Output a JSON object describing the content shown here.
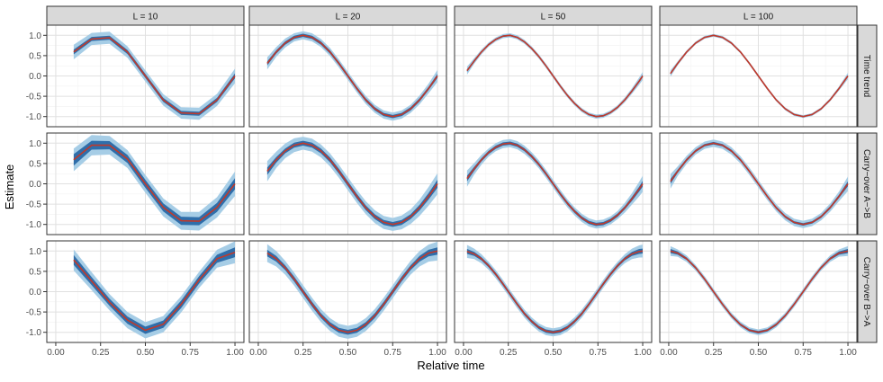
{
  "chart_data": {
    "type": "line",
    "xlabel": "Relative time",
    "ylabel": "Estimate",
    "xlim": [
      0,
      1
    ],
    "ylim": [
      -1.25,
      1.25
    ],
    "x_ticks": [
      "0.00",
      "0.25",
      "0.50",
      "0.75",
      "1.00"
    ],
    "y_ticks": [
      "1.0",
      "0.5",
      "0.0",
      "-0.5",
      "-1.0"
    ],
    "grid": true,
    "col_facets": [
      "L = 10",
      "L = 20",
      "L = 50",
      "L = 100"
    ],
    "row_facets": [
      "Time trend",
      "Carry−over A−>B",
      "Carry−over B−>A"
    ],
    "colors": {
      "outer_band": "#a6cde6",
      "inner_band": "#2f6eaa",
      "line": "#c0392b",
      "strip_fill": "#d9d9d9",
      "grid_major": "#e0e0e0",
      "grid_minor": "#f2f2f2"
    },
    "panels": [
      {
        "row": 0,
        "col": 0,
        "x": [
          0.1,
          0.2,
          0.3,
          0.4,
          0.5,
          0.6,
          0.7,
          0.8,
          0.9,
          1.0
        ],
        "y": [
          0.59,
          0.91,
          0.94,
          0.59,
          0.0,
          -0.59,
          -0.91,
          -0.93,
          -0.59,
          0.0
        ],
        "inner_hw": [
          0.06,
          0.05,
          0.05,
          0.05,
          0.05,
          0.05,
          0.05,
          0.05,
          0.05,
          0.06
        ],
        "outer_hw": [
          0.18,
          0.15,
          0.15,
          0.14,
          0.14,
          0.14,
          0.14,
          0.15,
          0.15,
          0.18
        ]
      },
      {
        "row": 0,
        "col": 1,
        "x": [
          0.05,
          0.1,
          0.15,
          0.2,
          0.25,
          0.3,
          0.35,
          0.4,
          0.45,
          0.5,
          0.55,
          0.6,
          0.65,
          0.7,
          0.75,
          0.8,
          0.85,
          0.9,
          0.95,
          1.0
        ],
        "y": [
          0.31,
          0.59,
          0.81,
          0.95,
          1.0,
          0.95,
          0.81,
          0.59,
          0.31,
          0.0,
          -0.31,
          -0.59,
          -0.81,
          -0.95,
          -1.0,
          -0.95,
          -0.81,
          -0.59,
          -0.31,
          0.0
        ],
        "inner_hw": [
          0.05,
          0.04,
          0.04,
          0.04,
          0.04,
          0.04,
          0.04,
          0.04,
          0.04,
          0.04,
          0.04,
          0.04,
          0.04,
          0.04,
          0.04,
          0.04,
          0.04,
          0.04,
          0.04,
          0.05
        ],
        "outer_hw": [
          0.15,
          0.12,
          0.11,
          0.1,
          0.1,
          0.1,
          0.1,
          0.1,
          0.1,
          0.1,
          0.1,
          0.1,
          0.1,
          0.1,
          0.1,
          0.1,
          0.1,
          0.11,
          0.12,
          0.15
        ]
      },
      {
        "row": 0,
        "col": 2,
        "x": [
          0.02,
          0.06,
          0.1,
          0.14,
          0.18,
          0.22,
          0.26,
          0.3,
          0.34,
          0.38,
          0.42,
          0.46,
          0.5,
          0.54,
          0.58,
          0.62,
          0.66,
          0.7,
          0.74,
          0.78,
          0.82,
          0.86,
          0.9,
          0.94,
          0.98,
          1.0
        ],
        "y": [
          0.13,
          0.37,
          0.59,
          0.77,
          0.9,
          0.98,
          1.0,
          0.95,
          0.84,
          0.68,
          0.48,
          0.25,
          0.0,
          -0.25,
          -0.48,
          -0.68,
          -0.84,
          -0.95,
          -1.0,
          -0.98,
          -0.9,
          -0.77,
          -0.59,
          -0.37,
          -0.13,
          0.0
        ],
        "inner_hw": [
          0.03,
          0.03,
          0.02,
          0.02,
          0.02,
          0.02,
          0.02,
          0.02,
          0.02,
          0.02,
          0.02,
          0.02,
          0.02,
          0.02,
          0.02,
          0.02,
          0.02,
          0.02,
          0.02,
          0.02,
          0.02,
          0.02,
          0.02,
          0.03,
          0.03,
          0.03
        ],
        "outer_hw": [
          0.1,
          0.07,
          0.06,
          0.05,
          0.05,
          0.05,
          0.05,
          0.05,
          0.05,
          0.05,
          0.05,
          0.05,
          0.05,
          0.05,
          0.05,
          0.05,
          0.05,
          0.05,
          0.05,
          0.05,
          0.05,
          0.05,
          0.06,
          0.07,
          0.09,
          0.1
        ]
      },
      {
        "row": 0,
        "col": 3,
        "x": [
          0.01,
          0.05,
          0.1,
          0.15,
          0.2,
          0.25,
          0.3,
          0.35,
          0.4,
          0.45,
          0.5,
          0.55,
          0.6,
          0.65,
          0.7,
          0.75,
          0.8,
          0.85,
          0.9,
          0.95,
          1.0
        ],
        "y": [
          0.06,
          0.31,
          0.59,
          0.81,
          0.95,
          1.0,
          0.95,
          0.81,
          0.59,
          0.31,
          0.0,
          -0.31,
          -0.59,
          -0.81,
          -0.95,
          -1.0,
          -0.95,
          -0.81,
          -0.59,
          -0.31,
          0.0
        ],
        "inner_hw": [
          0.02,
          0.02,
          0.015,
          0.015,
          0.015,
          0.015,
          0.015,
          0.015,
          0.015,
          0.015,
          0.015,
          0.015,
          0.015,
          0.015,
          0.015,
          0.015,
          0.015,
          0.015,
          0.015,
          0.02,
          0.02
        ],
        "outer_hw": [
          0.08,
          0.05,
          0.04,
          0.035,
          0.035,
          0.035,
          0.035,
          0.035,
          0.035,
          0.035,
          0.035,
          0.035,
          0.035,
          0.035,
          0.035,
          0.035,
          0.035,
          0.035,
          0.04,
          0.05,
          0.08
        ]
      },
      {
        "row": 1,
        "col": 0,
        "x": [
          0.1,
          0.2,
          0.3,
          0.4,
          0.5,
          0.6,
          0.7,
          0.8,
          0.9,
          1.0
        ],
        "y": [
          0.59,
          0.95,
          0.95,
          0.61,
          0.0,
          -0.58,
          -0.91,
          -0.92,
          -0.58,
          0.0
        ],
        "inner_hw": [
          0.14,
          0.11,
          0.1,
          0.1,
          0.1,
          0.1,
          0.1,
          0.1,
          0.11,
          0.14
        ],
        "outer_hw": [
          0.28,
          0.25,
          0.23,
          0.22,
          0.22,
          0.22,
          0.22,
          0.23,
          0.25,
          0.3
        ]
      },
      {
        "row": 1,
        "col": 1,
        "x": [
          0.05,
          0.1,
          0.15,
          0.2,
          0.25,
          0.3,
          0.35,
          0.4,
          0.45,
          0.5,
          0.55,
          0.6,
          0.65,
          0.7,
          0.75,
          0.8,
          0.85,
          0.9,
          0.95,
          1.0
        ],
        "y": [
          0.31,
          0.59,
          0.81,
          0.95,
          1.0,
          0.95,
          0.81,
          0.59,
          0.31,
          0.0,
          -0.31,
          -0.59,
          -0.81,
          -0.95,
          -1.0,
          -0.95,
          -0.81,
          -0.59,
          -0.31,
          0.0
        ],
        "inner_hw": [
          0.09,
          0.07,
          0.06,
          0.06,
          0.06,
          0.06,
          0.06,
          0.06,
          0.06,
          0.06,
          0.06,
          0.06,
          0.06,
          0.06,
          0.06,
          0.06,
          0.06,
          0.07,
          0.08,
          0.1
        ],
        "outer_hw": [
          0.25,
          0.2,
          0.18,
          0.17,
          0.16,
          0.16,
          0.16,
          0.16,
          0.16,
          0.16,
          0.16,
          0.16,
          0.16,
          0.16,
          0.16,
          0.17,
          0.18,
          0.2,
          0.23,
          0.26
        ]
      },
      {
        "row": 1,
        "col": 2,
        "x": [
          0.02,
          0.06,
          0.1,
          0.14,
          0.18,
          0.22,
          0.26,
          0.3,
          0.34,
          0.38,
          0.42,
          0.46,
          0.5,
          0.54,
          0.58,
          0.62,
          0.66,
          0.7,
          0.74,
          0.78,
          0.82,
          0.86,
          0.9,
          0.94,
          0.98,
          1.0
        ],
        "y": [
          0.13,
          0.37,
          0.59,
          0.77,
          0.9,
          0.98,
          1.0,
          0.95,
          0.84,
          0.68,
          0.48,
          0.25,
          0.0,
          -0.25,
          -0.48,
          -0.68,
          -0.84,
          -0.95,
          -1.0,
          -0.98,
          -0.9,
          -0.77,
          -0.59,
          -0.37,
          -0.13,
          0.0
        ],
        "inner_hw": [
          0.07,
          0.05,
          0.04,
          0.04,
          0.04,
          0.04,
          0.04,
          0.04,
          0.04,
          0.04,
          0.04,
          0.04,
          0.04,
          0.04,
          0.04,
          0.04,
          0.04,
          0.04,
          0.04,
          0.04,
          0.04,
          0.04,
          0.04,
          0.05,
          0.06,
          0.07
        ],
        "outer_hw": [
          0.2,
          0.14,
          0.12,
          0.1,
          0.1,
          0.1,
          0.1,
          0.1,
          0.1,
          0.1,
          0.1,
          0.1,
          0.1,
          0.1,
          0.1,
          0.1,
          0.1,
          0.1,
          0.1,
          0.1,
          0.1,
          0.1,
          0.12,
          0.14,
          0.18,
          0.2
        ]
      },
      {
        "row": 1,
        "col": 3,
        "x": [
          0.01,
          0.05,
          0.1,
          0.15,
          0.2,
          0.25,
          0.3,
          0.35,
          0.4,
          0.45,
          0.5,
          0.55,
          0.6,
          0.65,
          0.7,
          0.75,
          0.8,
          0.85,
          0.9,
          0.95,
          1.0
        ],
        "y": [
          0.06,
          0.31,
          0.59,
          0.81,
          0.95,
          1.0,
          0.95,
          0.81,
          0.59,
          0.31,
          0.0,
          -0.31,
          -0.59,
          -0.81,
          -0.95,
          -1.0,
          -0.95,
          -0.81,
          -0.59,
          -0.31,
          0.0
        ],
        "inner_hw": [
          0.06,
          0.04,
          0.035,
          0.03,
          0.03,
          0.03,
          0.03,
          0.03,
          0.03,
          0.03,
          0.03,
          0.03,
          0.03,
          0.03,
          0.03,
          0.03,
          0.03,
          0.03,
          0.035,
          0.04,
          0.06
        ],
        "outer_hw": [
          0.18,
          0.12,
          0.1,
          0.09,
          0.09,
          0.09,
          0.09,
          0.09,
          0.09,
          0.09,
          0.09,
          0.09,
          0.09,
          0.09,
          0.09,
          0.09,
          0.09,
          0.09,
          0.1,
          0.12,
          0.18
        ]
      },
      {
        "row": 2,
        "col": 0,
        "x": [
          0.1,
          0.2,
          0.3,
          0.4,
          0.5,
          0.6,
          0.7,
          0.8,
          0.9,
          1.0
        ],
        "y": [
          0.78,
          0.26,
          -0.26,
          -0.7,
          -0.95,
          -0.8,
          -0.31,
          0.29,
          0.81,
          0.97
        ],
        "inner_hw": [
          0.12,
          0.1,
          0.09,
          0.09,
          0.09,
          0.09,
          0.09,
          0.09,
          0.1,
          0.12
        ],
        "outer_hw": [
          0.26,
          0.22,
          0.2,
          0.2,
          0.2,
          0.2,
          0.2,
          0.2,
          0.22,
          0.27
        ]
      },
      {
        "row": 2,
        "col": 1,
        "x": [
          0.05,
          0.1,
          0.15,
          0.2,
          0.25,
          0.3,
          0.35,
          0.4,
          0.45,
          0.5,
          0.55,
          0.6,
          0.65,
          0.7,
          0.75,
          0.8,
          0.85,
          0.9,
          0.95,
          1.0
        ],
        "y": [
          0.95,
          0.81,
          0.59,
          0.31,
          0.0,
          -0.31,
          -0.59,
          -0.81,
          -0.95,
          -1.0,
          -0.95,
          -0.81,
          -0.59,
          -0.31,
          0.0,
          0.31,
          0.59,
          0.81,
          0.95,
          1.0
        ],
        "inner_hw": [
          0.08,
          0.07,
          0.06,
          0.06,
          0.06,
          0.06,
          0.06,
          0.06,
          0.06,
          0.06,
          0.06,
          0.06,
          0.06,
          0.06,
          0.06,
          0.06,
          0.06,
          0.07,
          0.08,
          0.09
        ],
        "outer_hw": [
          0.22,
          0.19,
          0.17,
          0.16,
          0.16,
          0.16,
          0.16,
          0.16,
          0.16,
          0.16,
          0.16,
          0.16,
          0.16,
          0.16,
          0.16,
          0.16,
          0.17,
          0.19,
          0.21,
          0.23
        ]
      },
      {
        "row": 2,
        "col": 2,
        "x": [
          0.02,
          0.06,
          0.1,
          0.14,
          0.18,
          0.22,
          0.26,
          0.3,
          0.34,
          0.38,
          0.42,
          0.46,
          0.5,
          0.54,
          0.58,
          0.62,
          0.66,
          0.7,
          0.74,
          0.78,
          0.82,
          0.86,
          0.9,
          0.94,
          0.98,
          1.0
        ],
        "y": [
          0.99,
          0.93,
          0.81,
          0.64,
          0.43,
          0.19,
          -0.06,
          -0.31,
          -0.54,
          -0.73,
          -0.88,
          -0.97,
          -1.0,
          -0.97,
          -0.88,
          -0.73,
          -0.54,
          -0.31,
          -0.06,
          0.19,
          0.43,
          0.64,
          0.81,
          0.93,
          0.99,
          1.0
        ],
        "inner_hw": [
          0.06,
          0.05,
          0.04,
          0.04,
          0.04,
          0.04,
          0.04,
          0.04,
          0.04,
          0.04,
          0.04,
          0.04,
          0.04,
          0.04,
          0.04,
          0.04,
          0.04,
          0.04,
          0.04,
          0.04,
          0.04,
          0.04,
          0.04,
          0.05,
          0.06,
          0.06
        ],
        "outer_hw": [
          0.16,
          0.13,
          0.11,
          0.1,
          0.1,
          0.1,
          0.1,
          0.1,
          0.1,
          0.1,
          0.1,
          0.1,
          0.1,
          0.1,
          0.1,
          0.1,
          0.1,
          0.1,
          0.1,
          0.1,
          0.1,
          0.1,
          0.11,
          0.13,
          0.15,
          0.16
        ]
      },
      {
        "row": 2,
        "col": 3,
        "x": [
          0.01,
          0.05,
          0.1,
          0.15,
          0.2,
          0.25,
          0.3,
          0.35,
          0.4,
          0.45,
          0.5,
          0.55,
          0.6,
          0.65,
          0.7,
          0.75,
          0.8,
          0.85,
          0.9,
          0.95,
          1.0
        ],
        "y": [
          1.0,
          0.95,
          0.81,
          0.59,
          0.31,
          0.0,
          -0.31,
          -0.59,
          -0.81,
          -0.95,
          -1.0,
          -0.95,
          -0.81,
          -0.59,
          -0.31,
          0.0,
          0.31,
          0.59,
          0.81,
          0.95,
          1.0
        ],
        "inner_hw": [
          0.05,
          0.04,
          0.03,
          0.03,
          0.03,
          0.03,
          0.03,
          0.03,
          0.03,
          0.03,
          0.03,
          0.03,
          0.03,
          0.03,
          0.03,
          0.03,
          0.03,
          0.03,
          0.03,
          0.04,
          0.05
        ],
        "outer_hw": [
          0.12,
          0.09,
          0.08,
          0.07,
          0.07,
          0.07,
          0.07,
          0.07,
          0.07,
          0.07,
          0.07,
          0.07,
          0.07,
          0.07,
          0.07,
          0.07,
          0.07,
          0.07,
          0.08,
          0.09,
          0.12
        ]
      }
    ]
  }
}
